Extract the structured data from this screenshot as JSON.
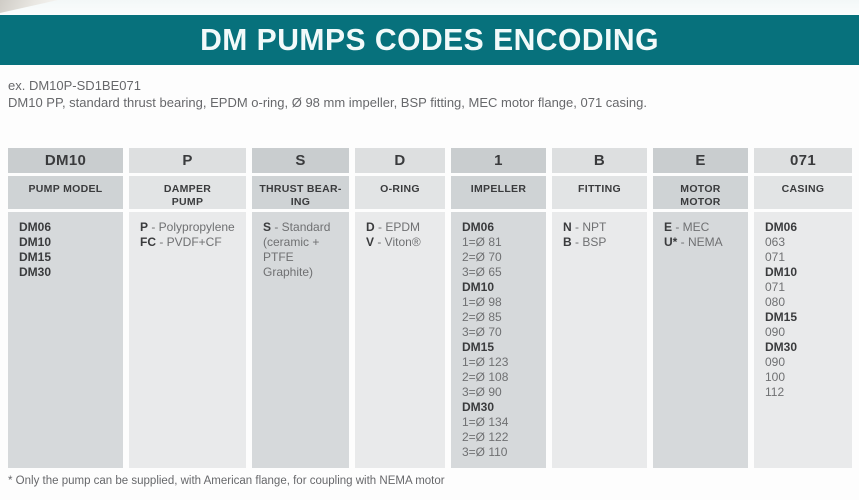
{
  "page": {
    "title": "DM PUMPS CODES ENCODING",
    "example_label": "ex. DM10P-SD1BE071",
    "example_description": "DM10 PP, standard thrust bearing, EPDM o-ring, Ø 98 mm impeller, BSP fitting, MEC motor flange, 071 casing.",
    "footnote": "* Only the pump can be supplied, with American flange, for coupling with NEMA motor"
  },
  "colors": {
    "accent_teal": "#07717c",
    "bold_text": "#3a3b3d",
    "regular_text": "#6f7072",
    "intro_text": "#67686b",
    "code_dark_bg": "#c9cdcf",
    "code_light_bg": "#dddfe0",
    "label_dark_bg": "#cfd3d5",
    "label_light_bg": "#e2e4e5",
    "body_dark_bg": "#d6d9db",
    "body_light_bg": "#e9eaeb"
  },
  "table": {
    "pair_separator": " - ",
    "columns": [
      {
        "code": "DM10",
        "label_lines": [
          "PUMP MODEL"
        ],
        "entries": [
          {
            "key": "DM06"
          },
          {
            "key": "DM10"
          },
          {
            "key": "DM15"
          },
          {
            "key": "DM30"
          }
        ]
      },
      {
        "code": "P",
        "label_lines": [
          "DAMPER",
          "PUMP"
        ],
        "entries": [
          {
            "key": "P",
            "text": "Polypropylene"
          },
          {
            "key": "FC",
            "text": "PVDF+CF"
          }
        ]
      },
      {
        "code": "S",
        "label_lines": [
          "THRUST BEAR-",
          "ING"
        ],
        "entries": [
          {
            "key": "S",
            "text": "Standard (ceramic + PTFE Graphite)"
          }
        ]
      },
      {
        "code": "D",
        "label_lines": [
          "O-RING"
        ],
        "entries": [
          {
            "key": "D",
            "text": "EPDM"
          },
          {
            "key": "V",
            "text": "Viton®"
          }
        ]
      },
      {
        "code": "1",
        "label_lines": [
          "IMPELLER"
        ],
        "entries": [
          {
            "key": "DM06"
          },
          {
            "text": "1=Ø 81"
          },
          {
            "text": "2=Ø 70"
          },
          {
            "text": "3=Ø 65"
          },
          {
            "key": "DM10"
          },
          {
            "text": "1=Ø 98"
          },
          {
            "text": "2=Ø 85"
          },
          {
            "text": "3=Ø 70"
          },
          {
            "key": "DM15"
          },
          {
            "text": "1=Ø 123"
          },
          {
            "text": "2=Ø 108"
          },
          {
            "text": "3=Ø 90"
          },
          {
            "key": "DM30"
          },
          {
            "text": "1=Ø 134"
          },
          {
            "text": "2=Ø 122"
          },
          {
            "text": "3=Ø 110"
          }
        ]
      },
      {
        "code": "B",
        "label_lines": [
          "FITTING"
        ],
        "entries": [
          {
            "key": "N",
            "text": "NPT"
          },
          {
            "key": "B",
            "text": "BSP"
          }
        ]
      },
      {
        "code": "E",
        "label_lines": [
          "MOTOR",
          "MOTOR"
        ],
        "entries": [
          {
            "key": "E",
            "text": "MEC"
          },
          {
            "key": "U*",
            "text": "NEMA"
          }
        ]
      },
      {
        "code": "071",
        "label_lines": [
          "CASING"
        ],
        "entries": [
          {
            "key": "DM06"
          },
          {
            "text": "063"
          },
          {
            "text": "071"
          },
          {
            "key": "DM10"
          },
          {
            "text": "071"
          },
          {
            "text": "080"
          },
          {
            "key": "DM15"
          },
          {
            "text": "090"
          },
          {
            "key": "DM30"
          },
          {
            "text": "090"
          },
          {
            "text": "100"
          },
          {
            "text": "112"
          }
        ]
      }
    ]
  }
}
